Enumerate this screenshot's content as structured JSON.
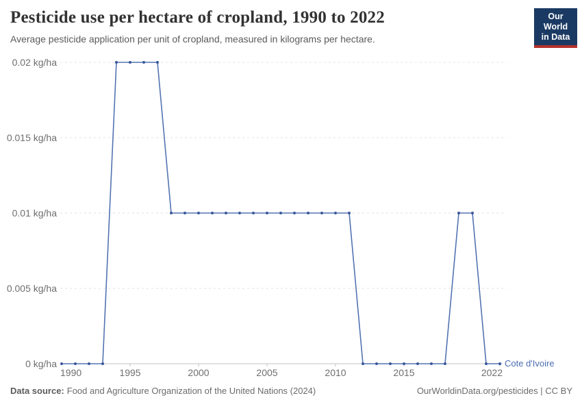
{
  "header": {
    "title": "Pesticide use per hectare of cropland, 1990 to 2022",
    "subtitle": "Average pesticide application per unit of cropland, measured in kilograms per hectare.",
    "logo": {
      "line1": "Our World",
      "line2": "in Data",
      "bg_color": "#1b3a63",
      "accent_color": "#b5312a"
    }
  },
  "chart_data": {
    "type": "line",
    "title": "Pesticide use per hectare of cropland, 1990 to 2022",
    "x": [
      1990,
      1991,
      1992,
      1993,
      1994,
      1995,
      1996,
      1997,
      1998,
      1999,
      2000,
      2001,
      2002,
      2003,
      2004,
      2005,
      2006,
      2007,
      2008,
      2009,
      2010,
      2011,
      2012,
      2013,
      2014,
      2015,
      2016,
      2017,
      2018,
      2019,
      2020,
      2021,
      2022
    ],
    "series": [
      {
        "name": "Cote d'Ivoire",
        "color": "#5373b1",
        "marker_color": "#3a589c",
        "values": [
          0,
          0,
          0,
          0,
          0.02,
          0.02,
          0.02,
          0.02,
          0.01,
          0.01,
          0.01,
          0.01,
          0.01,
          0.01,
          0.01,
          0.01,
          0.01,
          0.01,
          0.01,
          0.01,
          0.01,
          0.01,
          0,
          0,
          0,
          0,
          0,
          0,
          0,
          0.01,
          0.01,
          0,
          0
        ]
      }
    ],
    "xlim": [
      1990,
      2022
    ],
    "ylim": [
      0,
      0.02
    ],
    "x_ticks": [
      1990,
      1995,
      2000,
      2005,
      2010,
      2015,
      2022
    ],
    "y_ticks": [
      0,
      0.005,
      0.01,
      0.015,
      0.02
    ],
    "y_tick_labels": [
      "0 kg/ha",
      "0.005 kg/ha",
      "0.01 kg/ha",
      "0.015 kg/ha",
      "0.02 kg/ha"
    ],
    "grid": "horizontal-dashed",
    "legend_position": "end-of-line",
    "entity_label": "Cote d'Ivoire",
    "entity_label_color": "#4a6cb0",
    "axis_color": "#c2c2c2",
    "grid_color": "#e2e2e2",
    "tick_label_color": "#6e6e6e"
  },
  "footer": {
    "source_label": "Data source:",
    "source_text": "Food and Agriculture Organization of the United Nations (2024)",
    "credit": "OurWorldinData.org/pesticides | CC BY"
  }
}
